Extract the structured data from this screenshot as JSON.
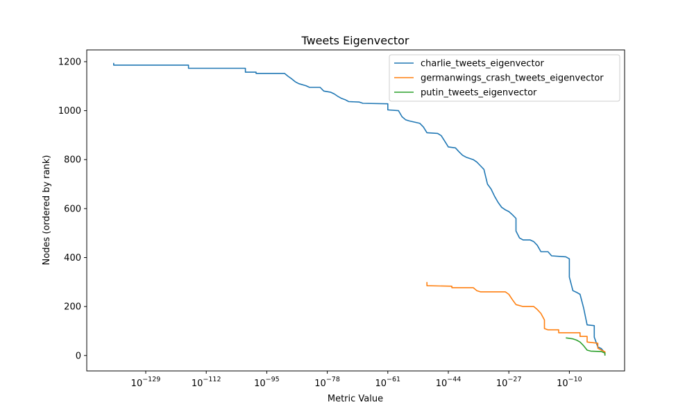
{
  "chart_data": {
    "type": "line",
    "title": "Tweets Eigenvector",
    "xlabel": "Metric Value",
    "ylabel": "Nodes (ordered by rank)",
    "x_scale": "log",
    "x_tick_labels": [
      {
        "base": "10",
        "exp": "−129",
        "value": "1e-129"
      },
      {
        "base": "10",
        "exp": "−112",
        "value": "1e-112"
      },
      {
        "base": "10",
        "exp": "−95",
        "value": "1e-95"
      },
      {
        "base": "10",
        "exp": "−78",
        "value": "1e-78"
      },
      {
        "base": "10",
        "exp": "−61",
        "value": "1e-61"
      },
      {
        "base": "10",
        "exp": "−44",
        "value": "1e-44"
      },
      {
        "base": "10",
        "exp": "−27",
        "value": "1e-27"
      },
      {
        "base": "10",
        "exp": "−10",
        "value": "1e-10"
      }
    ],
    "y_ticks": [
      0,
      200,
      400,
      600,
      800,
      1000,
      1200
    ],
    "ylim": [
      -63,
      1248
    ],
    "grid": false,
    "legend_position": "top-right",
    "series": [
      {
        "name": "charlie_tweets_eigenvector",
        "color": "#1f77b4",
        "points": [
          [
            "1e-138",
            1195
          ],
          [
            "1e-138",
            1186
          ],
          [
            "1e-117",
            1186
          ],
          [
            "1e-117",
            1173
          ],
          [
            "1e-101",
            1173
          ],
          [
            "1e-101",
            1157
          ],
          [
            "1e-98",
            1157
          ],
          [
            "1e-98",
            1152
          ],
          [
            "1e-90",
            1152
          ],
          [
            "1e-89",
            1140
          ],
          [
            "1e-88",
            1130
          ],
          [
            "1e-87",
            1118
          ],
          [
            "1e-86",
            1110
          ],
          [
            "1e-84",
            1102
          ],
          [
            "1e-83",
            1095
          ],
          [
            "1e-80",
            1095
          ],
          [
            "1e-79",
            1080
          ],
          [
            "1e-77",
            1075
          ],
          [
            "1e-76",
            1068
          ],
          [
            "1e-75",
            1058
          ],
          [
            "1e-74",
            1050
          ],
          [
            "1e-73",
            1045
          ],
          [
            "1e-72",
            1037
          ],
          [
            "1e-69",
            1035
          ],
          [
            "1e-68",
            1030
          ],
          [
            "1e-61",
            1028
          ],
          [
            "1e-61",
            1003
          ],
          [
            "1e-58",
            1000
          ],
          [
            "1e-57",
            975
          ],
          [
            "1e-56",
            963
          ],
          [
            "1e-55",
            958
          ],
          [
            "1e-52",
            948
          ],
          [
            "1e-51",
            933
          ],
          [
            "1e-50",
            910
          ],
          [
            "1e-47",
            907
          ],
          [
            "1e-46",
            898
          ],
          [
            "1e-45",
            875
          ],
          [
            "1e-44",
            852
          ],
          [
            "1e-42",
            848
          ],
          [
            "1e-41",
            832
          ],
          [
            "1e-40",
            818
          ],
          [
            "1e-39",
            810
          ],
          [
            "1e-37",
            800
          ],
          [
            "1e-36",
            790
          ],
          [
            "1e-35",
            775
          ],
          [
            "1e-34",
            760
          ],
          [
            "1e-33",
            700
          ],
          [
            "1e-32",
            680
          ],
          [
            "1e-31",
            650
          ],
          [
            "1e-30",
            625
          ],
          [
            "1e-29",
            605
          ],
          [
            "1e-28",
            595
          ],
          [
            "1e-27",
            588
          ],
          [
            "1e-26",
            575
          ],
          [
            "1e-25",
            560
          ],
          [
            "1e-25",
            508
          ],
          [
            "1e-24",
            480
          ],
          [
            "1e-23",
            472
          ],
          [
            "1e-21",
            472
          ],
          [
            "1e-20",
            465
          ],
          [
            "1e-19",
            450
          ],
          [
            "1e-18",
            424
          ],
          [
            "1e-16",
            424
          ],
          [
            "1e-15",
            407
          ],
          [
            "1e-11",
            403
          ],
          [
            "1e-10",
            395
          ],
          [
            "1e-10",
            320
          ],
          [
            "1e-9",
            265
          ],
          [
            "1e-8",
            258
          ],
          [
            "1e-7",
            250
          ],
          [
            "1e-6",
            195
          ],
          [
            "1e-5",
            125
          ],
          [
            "1e-3",
            122
          ],
          [
            "1e-3",
            75
          ],
          [
            "1e-2",
            35
          ],
          [
            "1e-1",
            28
          ],
          [
            "1e-0.5",
            10
          ],
          [
            "1e0",
            0
          ]
        ]
      },
      {
        "name": "germanwings_crash_tweets_eigenvector",
        "color": "#ff7f0e",
        "points": [
          [
            "1e-50",
            300
          ],
          [
            "1e-50",
            285
          ],
          [
            "1e-43",
            283
          ],
          [
            "1e-43",
            277
          ],
          [
            "1e-37",
            277
          ],
          [
            "1e-36",
            265
          ],
          [
            "1e-35",
            260
          ],
          [
            "1e-28",
            260
          ],
          [
            "1e-27",
            250
          ],
          [
            "1e-26",
            228
          ],
          [
            "1e-25",
            208
          ],
          [
            "1e-23",
            200
          ],
          [
            "1e-20",
            200
          ],
          [
            "1e-19",
            188
          ],
          [
            "1e-18",
            172
          ],
          [
            "1e-17",
            145
          ],
          [
            "1e-17",
            110
          ],
          [
            "1e-16",
            105
          ],
          [
            "1e-13",
            105
          ],
          [
            "1e-13",
            93
          ],
          [
            "1e-7",
            93
          ],
          [
            "1e-7",
            78
          ],
          [
            "1e-5",
            78
          ],
          [
            "1e-5",
            55
          ],
          [
            "1e-2",
            50
          ],
          [
            "1e-2",
            30
          ],
          [
            "1e-1",
            22
          ],
          [
            "1e0",
            15
          ],
          [
            "1e0",
            0
          ]
        ]
      },
      {
        "name": "putin_tweets_eigenvector",
        "color": "#2ca02c",
        "points": [
          [
            "1e-11",
            72
          ],
          [
            "1e-9",
            68
          ],
          [
            "1e-8",
            63
          ],
          [
            "1e-7",
            55
          ],
          [
            "1e-6",
            40
          ],
          [
            "1e-5",
            22
          ],
          [
            "1e-4",
            18
          ],
          [
            "1e-1",
            16
          ],
          [
            "1e0",
            10
          ],
          [
            "1e0",
            2
          ],
          [
            "1e0.3",
            0
          ]
        ]
      }
    ]
  }
}
